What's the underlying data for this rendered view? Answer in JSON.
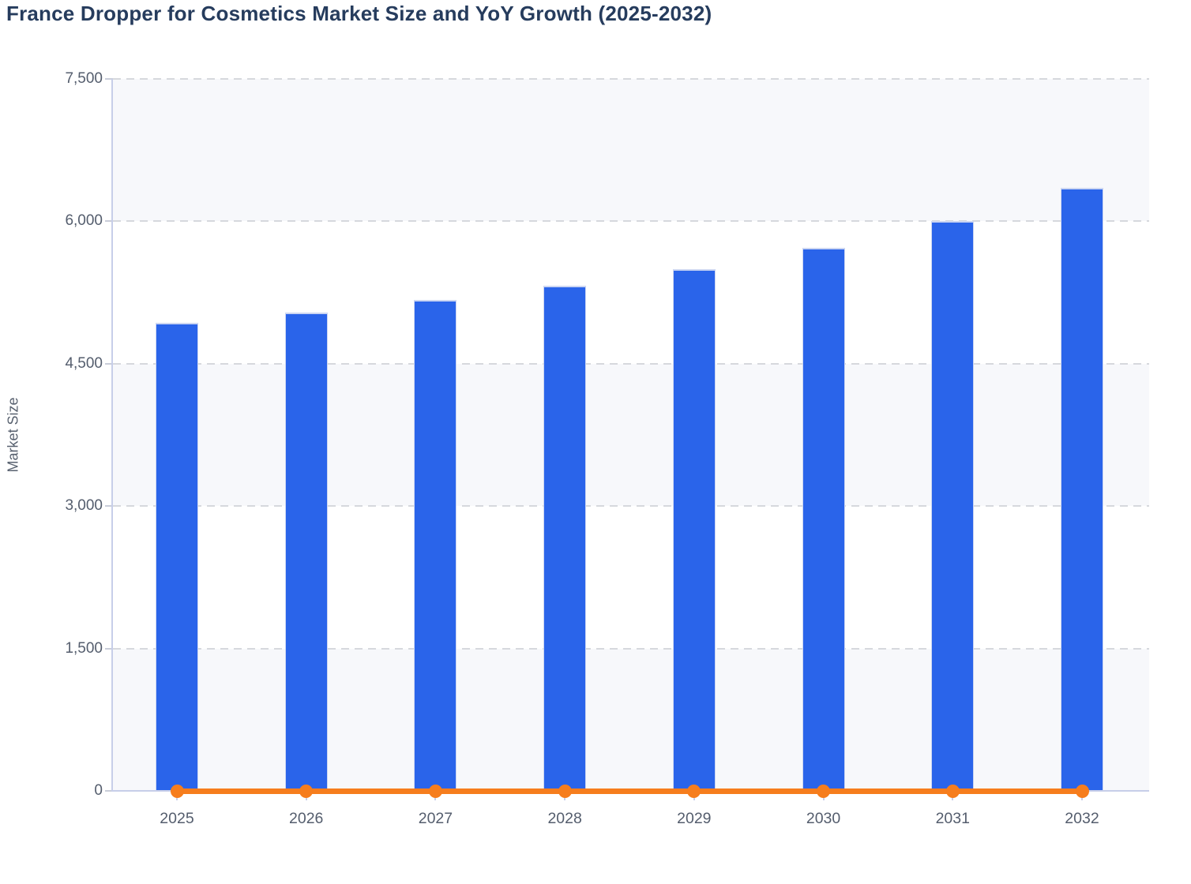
{
  "header": {
    "title": "France Dropper for Cosmetics Market Size and YoY Growth (2025-2032)"
  },
  "chart_data": {
    "type": "bar+line",
    "title": "France Dropper for Cosmetics Market Size and YoY Growth (2025-2032)",
    "categories": [
      "2025",
      "2026",
      "2027",
      "2028",
      "2029",
      "2030",
      "2031",
      "2032"
    ],
    "series": [
      {
        "name": "Market Size",
        "type": "bar",
        "color": "#2a64ea",
        "values": [
          4930,
          5040,
          5175,
          5320,
          5500,
          5720,
          6000,
          6355
        ]
      },
      {
        "name": "YoY Growth",
        "type": "line",
        "color": "#f67d1d",
        "values": [
          0,
          0,
          0,
          0,
          0,
          0,
          0,
          0
        ],
        "note": "Orange line with round markers runs along the zero baseline; YoY growth values are not labeled on the chart and render at ~0 on the Market Size axis."
      }
    ],
    "xlabel": "",
    "ylabel": "Market Size",
    "ylim": [
      0,
      7500
    ],
    "yticks": [
      0,
      1500,
      3000,
      4500,
      6000,
      7500
    ],
    "ytick_labels": [
      "0",
      "1,500",
      "3,000",
      "4,500",
      "6,000",
      "7,500"
    ],
    "legend": "none",
    "grid": "horizontal dashed gridlines at each 1,500 step",
    "plot_bands": "alternating very light horizontal bands between gridlines (tinted: 0-1500, 3000-4500, 6000-7500)",
    "colors": {
      "bar": "#2a64ea",
      "bar_edge": "#ccd6f2",
      "line": "#f67d1d",
      "band": "#f7f8fb",
      "gridline": "#d6d8dd",
      "axis": "#c7cee9",
      "tick": "#c9cdd9",
      "tick_label": "#545d6d",
      "axis_title": "#58616f",
      "title": "#263c5d",
      "background": "#ffffff"
    }
  }
}
